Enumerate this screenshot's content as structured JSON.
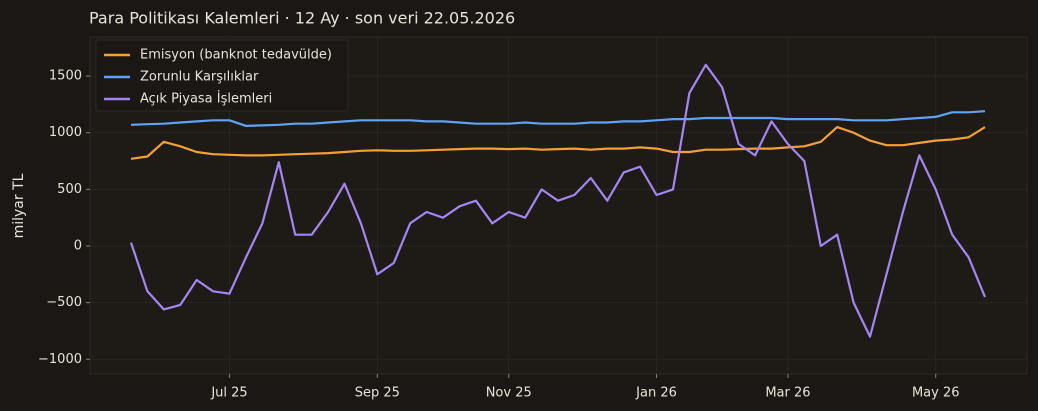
{
  "chart_data": {
    "type": "line",
    "title": "Para Politikası Kalemleri · 12 Ay · son veri 22.05.2026",
    "y_label": "milyar TL",
    "categories": [
      null,
      null,
      null,
      null,
      null,
      null,
      "Jul 25",
      null,
      null,
      null,
      null,
      null,
      null,
      null,
      null,
      "Sep 25",
      null,
      null,
      null,
      null,
      null,
      null,
      null,
      "Nov 25",
      null,
      null,
      null,
      null,
      null,
      null,
      null,
      null,
      "Jan 26",
      null,
      null,
      null,
      null,
      null,
      null,
      null,
      "Mar 26",
      null,
      null,
      null,
      null,
      null,
      null,
      null,
      null,
      "May 26",
      null,
      null,
      null
    ],
    "series": [
      {
        "name": "Emisyon (banknot tedavülde)",
        "color": "#f5a033",
        "values": [
          770,
          790,
          920,
          880,
          830,
          810,
          805,
          800,
          800,
          805,
          810,
          815,
          820,
          830,
          840,
          845,
          840,
          840,
          845,
          850,
          855,
          860,
          860,
          855,
          860,
          850,
          855,
          860,
          850,
          860,
          860,
          870,
          860,
          830,
          830,
          850,
          850,
          855,
          860,
          860,
          870,
          880,
          920,
          1050,
          1000,
          930,
          890,
          890,
          910,
          930,
          940,
          960,
          1050
        ]
      },
      {
        "name": "Zorunlu Karşılıklar",
        "color": "#5fa3f5",
        "values": [
          1070,
          1075,
          1080,
          1090,
          1100,
          1110,
          1110,
          1060,
          1065,
          1070,
          1080,
          1080,
          1090,
          1100,
          1110,
          1110,
          1110,
          1110,
          1100,
          1100,
          1090,
          1080,
          1080,
          1080,
          1090,
          1080,
          1080,
          1080,
          1090,
          1090,
          1100,
          1100,
          1110,
          1120,
          1120,
          1130,
          1130,
          1130,
          1130,
          1130,
          1120,
          1120,
          1120,
          1120,
          1110,
          1110,
          1110,
          1120,
          1130,
          1140,
          1180,
          1180,
          1190
        ]
      },
      {
        "name": "Açık Piyasa İşlemleri",
        "color": "#a485f5",
        "values": [
          30,
          -400,
          -560,
          -520,
          -300,
          -400,
          -420,
          -100,
          200,
          740,
          100,
          100,
          300,
          550,
          200,
          -250,
          -150,
          200,
          300,
          250,
          350,
          400,
          200,
          300,
          250,
          500,
          400,
          450,
          600,
          400,
          650,
          700,
          450,
          500,
          1350,
          1600,
          1400,
          900,
          800,
          1100,
          900,
          750,
          0,
          100,
          -500,
          -800,
          -250,
          300,
          800,
          500,
          100,
          -100,
          -450
        ]
      }
    ],
    "ylim": [
      -1130,
      1845
    ],
    "yticks": [
      {
        "value": -1000,
        "label": "−1000"
      },
      {
        "value": -500,
        "label": "−500"
      },
      0,
      500,
      1000,
      1500
    ],
    "grid": true,
    "legend": "upper left"
  }
}
